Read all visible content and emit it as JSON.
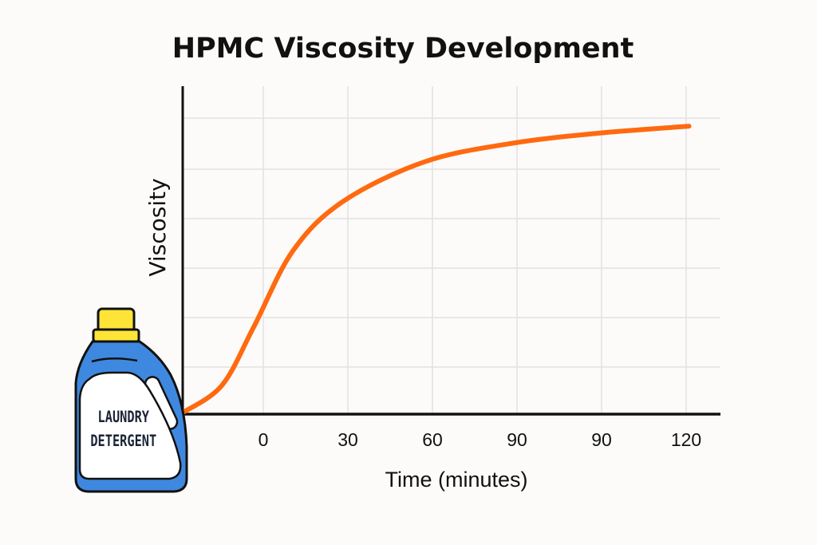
{
  "chart_data": {
    "type": "line",
    "title": "HPMC Viscosity Development",
    "xlabel": "Time (minutes)",
    "ylabel": "Viscosity",
    "x_tick_labels": [
      "0",
      "30",
      "60",
      "90",
      "90",
      "120"
    ],
    "y_ticks_count": 6,
    "grid": true,
    "legend": "none",
    "series": [
      {
        "color": "#ff6a10",
        "x": [
          -28.6,
          -14.7,
          -3.4,
          10.5,
          28.3,
          57.2,
          87.7,
          119,
          151
        ],
        "y": [
          0.03,
          0.58,
          1.76,
          3.3,
          4.3,
          5.1,
          5.47,
          5.68,
          5.82
        ]
      }
    ]
  },
  "illustration": {
    "label_line1": "LAUNDRY",
    "label_line2": "DETERGENT",
    "bottle_color": "#3f88df",
    "cap_color": "#fde437"
  }
}
